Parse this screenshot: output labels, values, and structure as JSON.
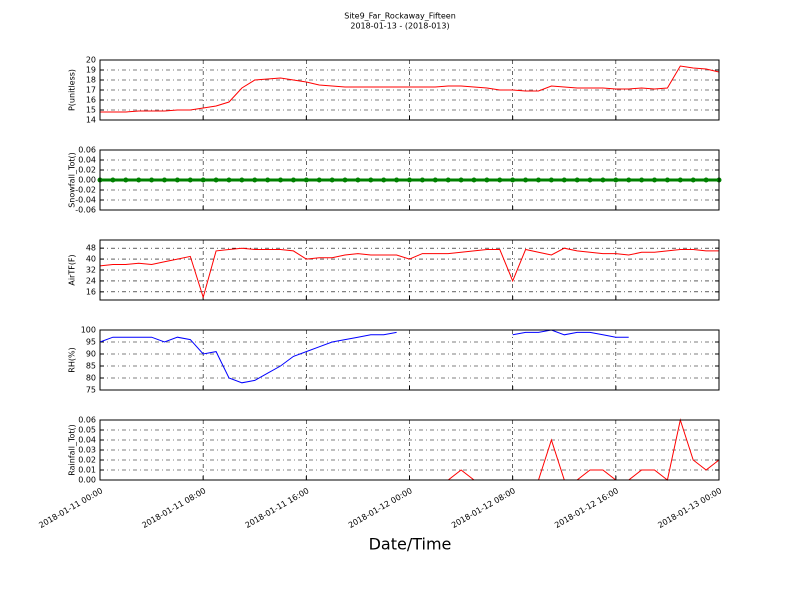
{
  "chart_data": {
    "type": "line",
    "title": "Site9_Far_Rockaway_Fifteen",
    "subtitle": "2018-01-13 - (2018-013)",
    "xlabel": "Date/Time",
    "grid": true,
    "x": [
      "2018-01-11 00:00",
      "2018-01-11 01:00",
      "2018-01-11 02:00",
      "2018-01-11 03:00",
      "2018-01-11 04:00",
      "2018-01-11 05:00",
      "2018-01-11 06:00",
      "2018-01-11 07:00",
      "2018-01-11 08:00",
      "2018-01-11 09:00",
      "2018-01-11 10:00",
      "2018-01-11 11:00",
      "2018-01-11 12:00",
      "2018-01-11 13:00",
      "2018-01-11 14:00",
      "2018-01-11 15:00",
      "2018-01-11 16:00",
      "2018-01-11 17:00",
      "2018-01-11 18:00",
      "2018-01-11 19:00",
      "2018-01-11 20:00",
      "2018-01-11 21:00",
      "2018-01-11 22:00",
      "2018-01-11 23:00",
      "2018-01-12 00:00",
      "2018-01-12 01:00",
      "2018-01-12 02:00",
      "2018-01-12 03:00",
      "2018-01-12 04:00",
      "2018-01-12 05:00",
      "2018-01-12 06:00",
      "2018-01-12 07:00",
      "2018-01-12 08:00",
      "2018-01-12 09:00",
      "2018-01-12 10:00",
      "2018-01-12 11:00",
      "2018-01-12 12:00",
      "2018-01-12 13:00",
      "2018-01-12 14:00",
      "2018-01-12 15:00",
      "2018-01-12 16:00",
      "2018-01-12 17:00",
      "2018-01-12 18:00",
      "2018-01-12 19:00",
      "2018-01-12 20:00",
      "2018-01-12 21:00",
      "2018-01-12 22:00",
      "2018-01-12 23:00",
      "2018-01-13 00:00"
    ],
    "xlim": [
      "2018-01-11 00:00",
      "2018-01-13 00:00"
    ],
    "xticks": [
      "2018-01-11 00:00",
      "2018-01-11 08:00",
      "2018-01-11 16:00",
      "2018-01-12 00:00",
      "2018-01-12 08:00",
      "2018-01-12 16:00",
      "2018-01-13 00:00"
    ],
    "panels": [
      {
        "ylabel": "P(unitless)",
        "color": "#ff0000",
        "ylim": [
          14,
          20
        ],
        "yticks": [
          14,
          15,
          16,
          17,
          18,
          19,
          20
        ],
        "values": [
          14.8,
          14.8,
          14.8,
          14.9,
          14.9,
          14.9,
          15.0,
          15.0,
          15.2,
          15.4,
          15.8,
          17.2,
          18.0,
          18.1,
          18.2,
          18.0,
          17.8,
          17.5,
          17.4,
          17.3,
          17.3,
          17.3,
          17.3,
          17.3,
          17.3,
          17.3,
          17.3,
          17.4,
          17.4,
          17.3,
          17.2,
          17.0,
          17.0,
          16.9,
          16.9,
          17.4,
          17.3,
          17.2,
          17.2,
          17.2,
          17.1,
          17.1,
          17.2,
          17.1,
          17.2,
          19.4,
          19.2,
          19.1,
          18.8
        ]
      },
      {
        "ylabel": "Snowfall_Tot()",
        "color": "#008000",
        "marker": "o",
        "ylim": [
          -0.06,
          0.06
        ],
        "yticks": [
          {
            "value": -0.06,
            "label": "-0.06"
          },
          {
            "value": -0.04,
            "label": "-0.04"
          },
          {
            "value": -0.02,
            "label": "-0.02"
          },
          {
            "value": 0,
            "label": "0.00"
          },
          {
            "value": 0.02,
            "label": "0.02"
          },
          {
            "value": 0.04,
            "label": "0.04"
          },
          {
            "value": 0.06,
            "label": "0.06"
          }
        ],
        "values": [
          0,
          0,
          0,
          0,
          0,
          0,
          0,
          0,
          0,
          0,
          0,
          0,
          0,
          0,
          0,
          0,
          0,
          0,
          0,
          0,
          0,
          0,
          0,
          0,
          0,
          0,
          0,
          0,
          0,
          0,
          0,
          0,
          0,
          0,
          0,
          0,
          0,
          0,
          0,
          0,
          0,
          0,
          0,
          0,
          0,
          0,
          0,
          0,
          0
        ]
      },
      {
        "ylabel": "AirTF(F)",
        "color": "#ff0000",
        "ylim": [
          10,
          54
        ],
        "yticks": [
          16,
          24,
          32,
          40,
          48
        ],
        "values": [
          35,
          36,
          36,
          37,
          36,
          38,
          40,
          42,
          12,
          46,
          47,
          48,
          47,
          47,
          47,
          46,
          40,
          41,
          41,
          43,
          44,
          43,
          43,
          43,
          40,
          44,
          44,
          44,
          45,
          46,
          47,
          47,
          24,
          47,
          45,
          43,
          48,
          46,
          45,
          44,
          44,
          43,
          45,
          45,
          46,
          47,
          47,
          46,
          46
        ]
      },
      {
        "ylabel": "RH(%)",
        "color": "#0000ff",
        "ylim": [
          75,
          100
        ],
        "yticks": [
          75,
          80,
          85,
          90,
          95,
          100
        ],
        "values": [
          95,
          97,
          97,
          97,
          97,
          95,
          97,
          96,
          90,
          91,
          80,
          78,
          79,
          82,
          85,
          89,
          91,
          93,
          95,
          96,
          97,
          98,
          98,
          99,
          null,
          null,
          null,
          null,
          null,
          null,
          null,
          null,
          98,
          99,
          99,
          100,
          98,
          99,
          99,
          98,
          97,
          97,
          null,
          null,
          null,
          null,
          null,
          null,
          null
        ]
      },
      {
        "ylabel": "Rainfall_Tot()",
        "color": "#ff0000",
        "ylim": [
          0,
          0.06
        ],
        "yticks": [
          {
            "value": 0,
            "label": "0.00"
          },
          {
            "value": 0.01,
            "label": "0.01"
          },
          {
            "value": 0.02,
            "label": "0.02"
          },
          {
            "value": 0.03,
            "label": "0.03"
          },
          {
            "value": 0.04,
            "label": "0.04"
          },
          {
            "value": 0.05,
            "label": "0.05"
          },
          {
            "value": 0.06,
            "label": "0.06"
          }
        ],
        "values": [
          0,
          0,
          0,
          0,
          0,
          0,
          0,
          0,
          0,
          0,
          0,
          0,
          0,
          0,
          0,
          0,
          0,
          0,
          0,
          0,
          0,
          0,
          0,
          0,
          0,
          0,
          0,
          0,
          0.01,
          0,
          0,
          0,
          0,
          0,
          0,
          0.04,
          0,
          0,
          0.01,
          0.01,
          0,
          0,
          0.01,
          0.01,
          0,
          0.06,
          0.02,
          0.01,
          0.02
        ]
      }
    ]
  }
}
